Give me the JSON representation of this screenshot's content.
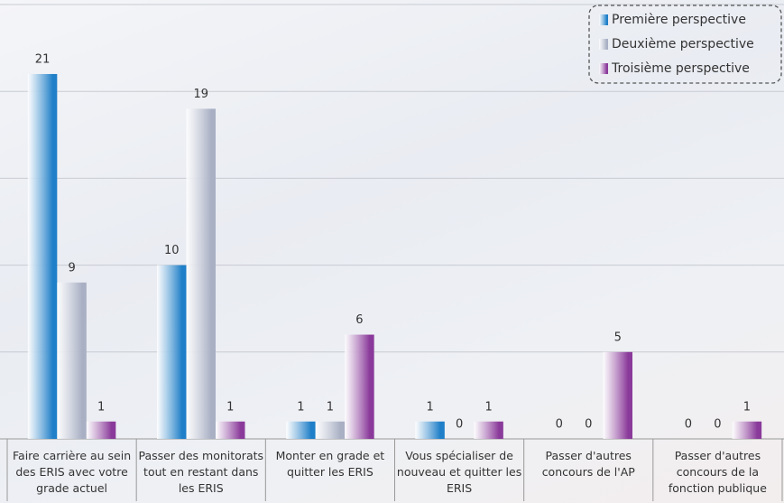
{
  "chart_data": {
    "type": "bar",
    "categories": [
      "Faire carrière au sein des ERIS avec votre grade actuel",
      "Passer des monitorats tout en restant dans les ERIS",
      "Monter en grade et quitter les ERIS",
      "Vous spécialiser de nouveau et quitter les ERIS",
      "Passer d'autres concours de l'AP",
      "Passer d'autres concours de la fonction publique"
    ],
    "series": [
      {
        "name": "Première perspective",
        "color": "#1f7fc8",
        "values": [
          21,
          10,
          1,
          1,
          0,
          0
        ]
      },
      {
        "name": "Deuxième perspective",
        "color": "#a9b0c4",
        "values": [
          9,
          19,
          1,
          0,
          0,
          0
        ]
      },
      {
        "name": "Troisième perspective",
        "color": "#8a3a9a",
        "values": [
          1,
          1,
          6,
          1,
          5,
          1
        ]
      }
    ],
    "ylim": [
      0,
      25
    ],
    "yticks": [
      0,
      5,
      10,
      15,
      20,
      25
    ],
    "grid": true,
    "legend": "top-right"
  }
}
